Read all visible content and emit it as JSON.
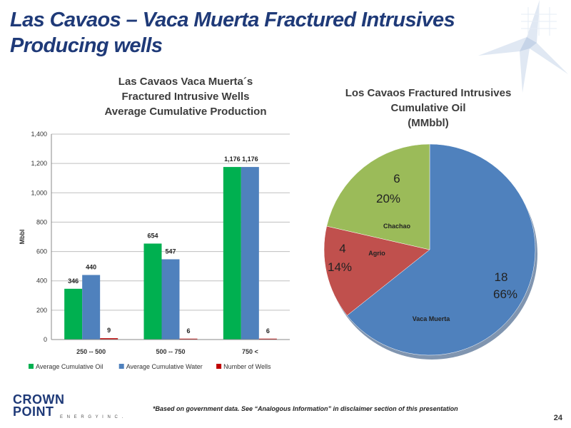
{
  "page": {
    "title": "Las Cavaos – Vaca Muerta Fractured Intrusives Producing wells",
    "footnote": "*Based on government data. See “Analogous Information” in disclaimer section of this presentation",
    "page_number": "24",
    "logo": {
      "line1": "CROWN",
      "line2": "POINT",
      "line3": "E N E R G Y   I N C ."
    }
  },
  "chart_data": [
    {
      "type": "bar",
      "title_lines": [
        "Las Cavaos Vaca Muerta´s",
        "Fractured Intrusive Wells",
        "Average Cumulative Production"
      ],
      "ylabel": "Mbbl",
      "ylim": [
        0,
        1400
      ],
      "yticks": [
        0,
        200,
        400,
        600,
        800,
        1000,
        1200,
        1400
      ],
      "ytick_labels": [
        "0",
        "200",
        "400",
        "600",
        "800",
        "1,000",
        "1,200",
        "1,400"
      ],
      "categories": [
        "250 -- 500",
        "500 -- 750",
        "750 <"
      ],
      "series": [
        {
          "name": "Average Cumulative Oil",
          "color": "#00b050",
          "values": [
            346,
            654,
            1176
          ],
          "labels": [
            "346",
            "654",
            "1,176"
          ]
        },
        {
          "name": "Average Cumulative Water",
          "color": "#4f81bd",
          "values": [
            440,
            547,
            1176
          ],
          "labels": [
            "440",
            "547",
            "1,176"
          ]
        },
        {
          "name": "Number of Wells",
          "color": "#c00000",
          "values": [
            9,
            6,
            6
          ],
          "labels": [
            "9",
            "6",
            "6"
          ]
        }
      ],
      "grid": true,
      "legend": "bottom"
    },
    {
      "type": "pie",
      "title_lines": [
        "Los Cavaos Fractured Intrusives",
        "Cumulative Oil",
        "(MMbbl)"
      ],
      "slices": [
        {
          "name": "Vaca Muerta",
          "value": 18,
          "value_label": "18",
          "percent_label": "66%",
          "color": "#4f81bd"
        },
        {
          "name": "Agrio",
          "value": 4,
          "value_label": "4",
          "percent_label": "14%",
          "color": "#c0504d"
        },
        {
          "name": "Chachao",
          "value": 6,
          "value_label": "6",
          "percent_label": "20%",
          "color": "#9bbb59"
        }
      ]
    }
  ]
}
